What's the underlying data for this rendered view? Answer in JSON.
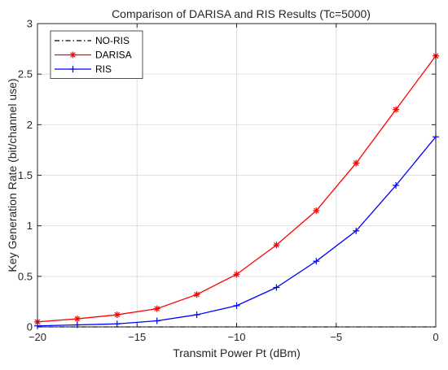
{
  "chart_data": {
    "type": "line",
    "title": "Comparison of DARISA and RIS Results (Tc=5000)",
    "xlabel": "Transmit Power Pt (dBm)",
    "ylabel": "Key Generation Rate (bit/channel use)",
    "x": [
      -20,
      -18,
      -16,
      -14,
      -12,
      -10,
      -8,
      -6,
      -4,
      -2,
      0
    ],
    "xlim": [
      -20,
      0
    ],
    "ylim": [
      0,
      3
    ],
    "xticks": [
      -20,
      -15,
      -10,
      -5,
      0
    ],
    "xtick_labels": [
      "−20",
      "−15",
      "−10",
      "−5",
      "0"
    ],
    "yticks": [
      0,
      0.5,
      1,
      1.5,
      2,
      2.5,
      3
    ],
    "ytick_labels": [
      "0",
      "0.5",
      "1",
      "1.5",
      "2",
      "2.5",
      "3"
    ],
    "grid": true,
    "legend_position": "top-left",
    "series": [
      {
        "name": "NO-RIS",
        "color": "#000000",
        "line_style": "dash-dot",
        "marker": "none",
        "values": [
          0,
          0,
          0,
          0,
          0,
          0,
          0,
          0,
          0,
          0,
          0
        ]
      },
      {
        "name": "DARISA",
        "color": "#ff0000",
        "line_style": "solid",
        "marker": "asterisk",
        "values": [
          0.05,
          0.08,
          0.12,
          0.18,
          0.32,
          0.52,
          0.81,
          1.15,
          1.62,
          2.15,
          2.68
        ]
      },
      {
        "name": "RIS",
        "color": "#0000ff",
        "line_style": "solid",
        "marker": "plus",
        "values": [
          0.01,
          0.02,
          0.03,
          0.06,
          0.12,
          0.21,
          0.39,
          0.65,
          0.95,
          1.4,
          1.88
        ]
      }
    ]
  }
}
